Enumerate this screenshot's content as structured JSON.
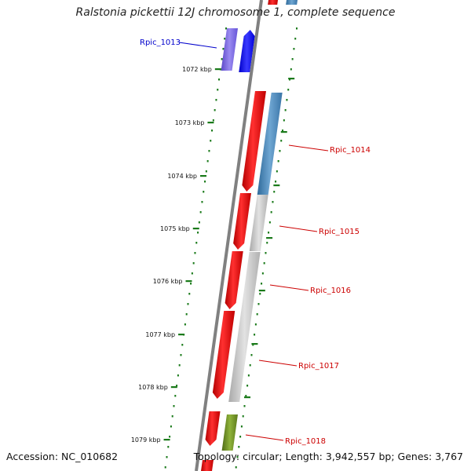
{
  "title": "Ralstonia pickettii 12J chromosome 1, complete sequence",
  "footer": {
    "accession": "Accession: NC_010682",
    "topology": "Topology: circular; Length: 3,942,557 bp; Genes: 3,767"
  },
  "ticks": [
    {
      "label": "1072 kbp"
    },
    {
      "label": "1073 kbp"
    },
    {
      "label": "1074 kbp"
    },
    {
      "label": "1075 kbp"
    },
    {
      "label": "1076 kbp"
    },
    {
      "label": "1077 kbp"
    },
    {
      "label": "1078 kbp"
    },
    {
      "label": "1079 kbp"
    }
  ],
  "genes": [
    {
      "name": "Rpic_1013",
      "color": "#0000cc"
    },
    {
      "name": "Rpic_1014",
      "color": "#cc0000"
    },
    {
      "name": "Rpic_1015",
      "color": "#cc0000"
    },
    {
      "name": "Rpic_1016",
      "color": "#cc0000"
    },
    {
      "name": "Rpic_1017",
      "color": "#cc0000"
    },
    {
      "name": "Rpic_1018",
      "color": "#cc0000"
    }
  ],
  "colors": {
    "backbone": "#808080",
    "tick": "#1a7a1a",
    "cds": "#ff0000",
    "gene_steel": "#4682b4",
    "gene_gray": "#c8c8c8",
    "gene_blue": "#0000ff",
    "gene_purple": "#7b68ee",
    "gene_olive": "#6b8e23"
  }
}
